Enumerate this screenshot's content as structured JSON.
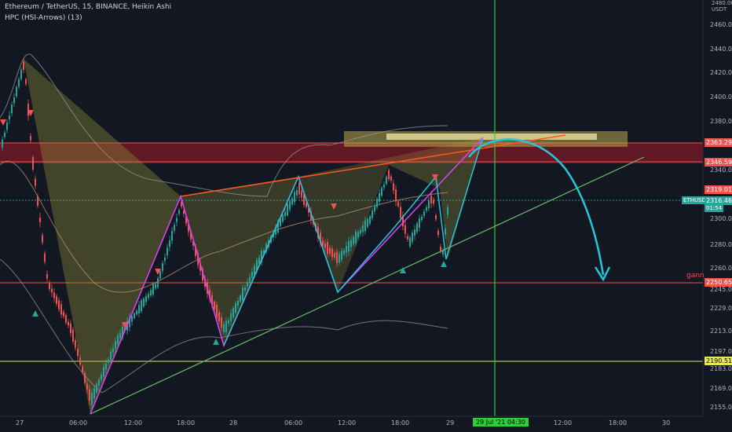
{
  "header": {
    "title": "Ethereum / TetherUS, 15, BINANCE, Heikin Ashi",
    "indicator": "HPC (HSI-Arrows) (13)"
  },
  "axis_top": {
    "price": "2480.00",
    "unit": "USDT"
  },
  "y_ticks": [
    "2460.00",
    "2440.00",
    "2420.00",
    "2400.00",
    "2380.00",
    "2340.00",
    "2300.00",
    "2280.00",
    "2260.00",
    "2245.00",
    "2229.00",
    "2213.00",
    "2197.00",
    "2183.00",
    "2169.00",
    "2155.00"
  ],
  "x_ticks": [
    "27",
    "06:00",
    "12:00",
    "18:00",
    "28",
    "06:00",
    "12:00",
    "18:00",
    "29",
    "12:00",
    "18:00",
    "30"
  ],
  "price_labels": {
    "level1": "2363.29",
    "level2": "2346.59",
    "level3": "2319.01",
    "ticker": "ETHUSDT",
    "current": "2316.46",
    "countdown": "01:54",
    "level4": "2250.65",
    "level5": "2190.51"
  },
  "annotation": "gann",
  "cursor_time": "29 Jul '21  04:30",
  "colors": {
    "background": "#131722",
    "bull": "#26a69a",
    "bear": "#ef5350",
    "resistance_zone": "#8b1e2b",
    "supply_zone": "#c8b96a",
    "magenta": "#e040fb",
    "cyan": "#26c6da",
    "green_line": "#66bb6a",
    "yellow_line": "#e6e65a",
    "cursor": "#2ecc40"
  }
}
